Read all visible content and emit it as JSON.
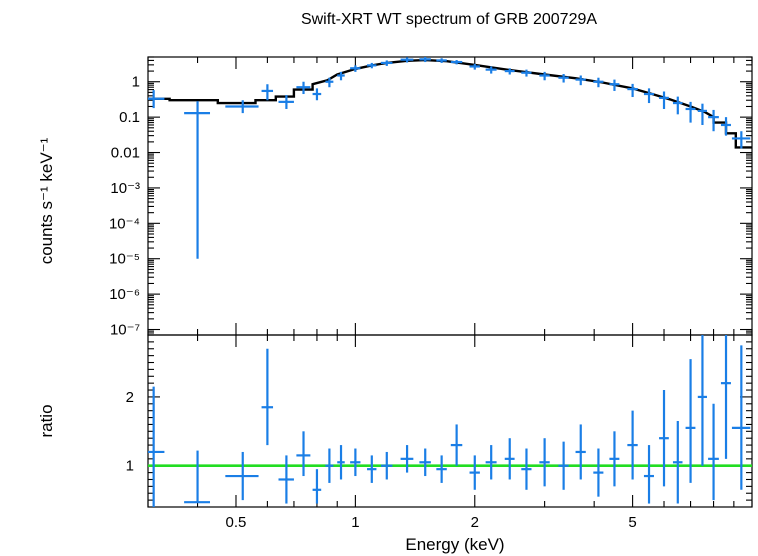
{
  "chart_data": [
    {
      "type": "scatter",
      "panel": "spectrum",
      "title": "Swift-XRT WT spectrum of GRB 200729A",
      "xlabel": "Energy (keV)",
      "ylabel": "counts s⁻¹ keV⁻¹",
      "xscale": "log",
      "yscale": "log",
      "xlim": [
        0.3,
        10
      ],
      "ylim": [
        7e-08,
        5
      ],
      "ytick_values": [
        1e-07,
        1e-06,
        1e-05,
        0.0001,
        0.001,
        0.01,
        0.1,
        1
      ],
      "ytick_labels": [
        "10⁻⁷",
        "10⁻⁶",
        "10⁻⁵",
        "10⁻⁴",
        "10⁻³",
        "0.01",
        "0.1",
        "1"
      ],
      "data": [
        {
          "x": 0.31,
          "xerr": 0.02,
          "y": 0.33,
          "yerr": [
            0.15,
            0.25
          ]
        },
        {
          "x": 0.4,
          "xerr": 0.03,
          "y": 0.13,
          "yerr": [
            0.12999,
            0.15
          ]
        },
        {
          "x": 0.52,
          "xerr": 0.05,
          "y": 0.2,
          "yerr": [
            0.07,
            0.1
          ]
        },
        {
          "x": 0.6,
          "xerr": 0.02,
          "y": 0.55,
          "yerr": [
            0.25,
            0.3
          ]
        },
        {
          "x": 0.67,
          "xerr": 0.03,
          "y": 0.27,
          "yerr": [
            0.1,
            0.15
          ]
        },
        {
          "x": 0.74,
          "xerr": 0.03,
          "y": 0.7,
          "yerr": [
            0.25,
            0.3
          ]
        },
        {
          "x": 0.8,
          "xerr": 0.02,
          "y": 0.45,
          "yerr": [
            0.15,
            0.2
          ]
        },
        {
          "x": 0.86,
          "xerr": 0.02,
          "y": 1.0,
          "yerr": [
            0.3,
            0.3
          ]
        },
        {
          "x": 0.92,
          "xerr": 0.02,
          "y": 1.5,
          "yerr": [
            0.4,
            0.4
          ]
        },
        {
          "x": 1.0,
          "xerr": 0.03,
          "y": 2.4,
          "yerr": [
            0.5,
            0.5
          ]
        },
        {
          "x": 1.1,
          "xerr": 0.03,
          "y": 2.9,
          "yerr": [
            0.5,
            0.5
          ]
        },
        {
          "x": 1.2,
          "xerr": 0.04,
          "y": 3.4,
          "yerr": [
            0.6,
            0.6
          ]
        },
        {
          "x": 1.35,
          "xerr": 0.05,
          "y": 4.2,
          "yerr": [
            0.7,
            0.7
          ]
        },
        {
          "x": 1.5,
          "xerr": 0.05,
          "y": 4.3,
          "yerr": [
            0.7,
            0.7
          ]
        },
        {
          "x": 1.65,
          "xerr": 0.05,
          "y": 4.0,
          "yerr": [
            0.6,
            0.6
          ]
        },
        {
          "x": 1.8,
          "xerr": 0.06,
          "y": 3.6,
          "yerr": [
            0.5,
            0.5
          ]
        },
        {
          "x": 2.0,
          "xerr": 0.06,
          "y": 2.7,
          "yerr": [
            0.5,
            0.5
          ]
        },
        {
          "x": 2.2,
          "xerr": 0.07,
          "y": 2.2,
          "yerr": [
            0.5,
            0.5
          ]
        },
        {
          "x": 2.45,
          "xerr": 0.07,
          "y": 2.0,
          "yerr": [
            0.4,
            0.4
          ]
        },
        {
          "x": 2.7,
          "xerr": 0.08,
          "y": 1.8,
          "yerr": [
            0.4,
            0.4
          ]
        },
        {
          "x": 3.0,
          "xerr": 0.09,
          "y": 1.5,
          "yerr": [
            0.4,
            0.4
          ]
        },
        {
          "x": 3.35,
          "xerr": 0.1,
          "y": 1.3,
          "yerr": [
            0.35,
            0.35
          ]
        },
        {
          "x": 3.7,
          "xerr": 0.11,
          "y": 1.15,
          "yerr": [
            0.35,
            0.35
          ]
        },
        {
          "x": 4.1,
          "xerr": 0.12,
          "y": 1.0,
          "yerr": [
            0.3,
            0.3
          ]
        },
        {
          "x": 4.5,
          "xerr": 0.13,
          "y": 0.85,
          "yerr": [
            0.3,
            0.3
          ]
        },
        {
          "x": 5.0,
          "xerr": 0.15,
          "y": 0.62,
          "yerr": [
            0.25,
            0.25
          ]
        },
        {
          "x": 5.5,
          "xerr": 0.16,
          "y": 0.45,
          "yerr": [
            0.2,
            0.2
          ]
        },
        {
          "x": 6.0,
          "xerr": 0.17,
          "y": 0.35,
          "yerr": [
            0.18,
            0.18
          ]
        },
        {
          "x": 6.5,
          "xerr": 0.18,
          "y": 0.25,
          "yerr": [
            0.13,
            0.13
          ]
        },
        {
          "x": 7.0,
          "xerr": 0.2,
          "y": 0.17,
          "yerr": [
            0.1,
            0.1
          ]
        },
        {
          "x": 7.5,
          "xerr": 0.2,
          "y": 0.15,
          "yerr": [
            0.09,
            0.09
          ]
        },
        {
          "x": 8.0,
          "xerr": 0.25,
          "y": 0.1,
          "yerr": [
            0.06,
            0.06
          ]
        },
        {
          "x": 8.6,
          "xerr": 0.25,
          "y": 0.06,
          "yerr": [
            0.03,
            0.04
          ]
        },
        {
          "x": 9.4,
          "xerr": 0.5,
          "y": 0.025,
          "yerr": [
            0.012,
            0.015
          ]
        }
      ],
      "model": {
        "x": [
          0.3,
          0.34,
          0.34,
          0.45,
          0.45,
          0.56,
          0.56,
          0.63,
          0.63,
          0.7,
          0.7,
          0.78,
          0.78,
          0.85,
          0.9,
          1.0,
          1.1,
          1.2,
          1.35,
          1.5,
          1.7,
          2.0,
          2.4,
          3.0,
          3.6,
          4.2,
          5.0,
          5.6,
          6.2,
          7.0,
          7.6,
          8.0,
          8.0,
          8.6,
          8.6,
          9.1,
          9.1,
          10.0
        ],
        "y": [
          0.33,
          0.33,
          0.3,
          0.3,
          0.25,
          0.25,
          0.3,
          0.3,
          0.38,
          0.38,
          0.6,
          0.6,
          0.85,
          1.1,
          1.6,
          2.3,
          2.9,
          3.4,
          3.9,
          4.1,
          3.8,
          3.0,
          2.2,
          1.6,
          1.25,
          0.95,
          0.65,
          0.45,
          0.32,
          0.2,
          0.14,
          0.1,
          0.07,
          0.07,
          0.035,
          0.035,
          0.014,
          0.014
        ]
      },
      "colors": {
        "data": "#1a7ee6",
        "model": "#000000"
      }
    },
    {
      "type": "scatter",
      "panel": "ratio",
      "xlabel": "Energy (keV)",
      "ylabel": "ratio",
      "xscale": "log",
      "xlim": [
        0.3,
        10
      ],
      "ylim": [
        0.4,
        2.9
      ],
      "ytick_values": [
        1,
        2
      ],
      "ytick_labels": [
        "1",
        "2"
      ],
      "xtick_values": [
        0.5,
        1,
        2,
        5
      ],
      "xtick_labels": [
        "0.5",
        "1",
        "2",
        "5"
      ],
      "reference_line": 1,
      "data": [
        {
          "x": 0.31,
          "xerr": 0.02,
          "y": 1.2,
          "yerr": [
            0.8,
            0.95
          ]
        },
        {
          "x": 0.4,
          "xerr": 0.03,
          "y": 0.47,
          "yerr": [
            0.0,
            0.75
          ]
        },
        {
          "x": 0.52,
          "xerr": 0.05,
          "y": 0.85,
          "yerr": [
            0.35,
            0.35
          ]
        },
        {
          "x": 0.6,
          "xerr": 0.02,
          "y": 1.85,
          "yerr": [
            0.55,
            0.85
          ]
        },
        {
          "x": 0.67,
          "xerr": 0.03,
          "y": 0.8,
          "yerr": [
            0.35,
            0.35
          ]
        },
        {
          "x": 0.74,
          "xerr": 0.03,
          "y": 1.15,
          "yerr": [
            0.3,
            0.35
          ]
        },
        {
          "x": 0.8,
          "xerr": 0.02,
          "y": 0.65,
          "yerr": [
            0.2,
            0.3
          ]
        },
        {
          "x": 0.86,
          "xerr": 0.02,
          "y": 1.0,
          "yerr": [
            0.25,
            0.25
          ]
        },
        {
          "x": 0.92,
          "xerr": 0.02,
          "y": 1.05,
          "yerr": [
            0.25,
            0.25
          ]
        },
        {
          "x": 1.0,
          "xerr": 0.03,
          "y": 1.05,
          "yerr": [
            0.2,
            0.2
          ]
        },
        {
          "x": 1.1,
          "xerr": 0.03,
          "y": 0.95,
          "yerr": [
            0.2,
            0.2
          ]
        },
        {
          "x": 1.2,
          "xerr": 0.04,
          "y": 1.0,
          "yerr": [
            0.2,
            0.2
          ]
        },
        {
          "x": 1.35,
          "xerr": 0.05,
          "y": 1.1,
          "yerr": [
            0.2,
            0.2
          ]
        },
        {
          "x": 1.5,
          "xerr": 0.05,
          "y": 1.05,
          "yerr": [
            0.2,
            0.2
          ]
        },
        {
          "x": 1.65,
          "xerr": 0.05,
          "y": 0.95,
          "yerr": [
            0.2,
            0.2
          ]
        },
        {
          "x": 1.8,
          "xerr": 0.06,
          "y": 1.3,
          "yerr": [
            0.3,
            0.3
          ]
        },
        {
          "x": 2.0,
          "xerr": 0.06,
          "y": 0.9,
          "yerr": [
            0.25,
            0.25
          ]
        },
        {
          "x": 2.2,
          "xerr": 0.07,
          "y": 1.05,
          "yerr": [
            0.25,
            0.25
          ]
        },
        {
          "x": 2.45,
          "xerr": 0.07,
          "y": 1.1,
          "yerr": [
            0.3,
            0.3
          ]
        },
        {
          "x": 2.7,
          "xerr": 0.08,
          "y": 0.95,
          "yerr": [
            0.3,
            0.3
          ]
        },
        {
          "x": 3.0,
          "xerr": 0.09,
          "y": 1.05,
          "yerr": [
            0.35,
            0.35
          ]
        },
        {
          "x": 3.35,
          "xerr": 0.1,
          "y": 1.0,
          "yerr": [
            0.35,
            0.35
          ]
        },
        {
          "x": 3.7,
          "xerr": 0.11,
          "y": 1.2,
          "yerr": [
            0.4,
            0.4
          ]
        },
        {
          "x": 4.1,
          "xerr": 0.12,
          "y": 0.9,
          "yerr": [
            0.35,
            0.35
          ]
        },
        {
          "x": 4.5,
          "xerr": 0.13,
          "y": 1.1,
          "yerr": [
            0.4,
            0.4
          ]
        },
        {
          "x": 5.0,
          "xerr": 0.15,
          "y": 1.3,
          "yerr": [
            0.5,
            0.5
          ]
        },
        {
          "x": 5.5,
          "xerr": 0.16,
          "y": 0.85,
          "yerr": [
            0.4,
            0.45
          ]
        },
        {
          "x": 6.0,
          "xerr": 0.17,
          "y": 1.4,
          "yerr": [
            0.7,
            0.7
          ]
        },
        {
          "x": 6.5,
          "xerr": 0.18,
          "y": 1.05,
          "yerr": [
            0.6,
            0.6
          ]
        },
        {
          "x": 7.0,
          "xerr": 0.2,
          "y": 1.55,
          "yerr": [
            0.8,
            1.0
          ]
        },
        {
          "x": 7.5,
          "xerr": 0.2,
          "y": 2.0,
          "yerr": [
            1.0,
            1.0
          ]
        },
        {
          "x": 8.0,
          "xerr": 0.25,
          "y": 1.1,
          "yerr": [
            0.6,
            0.8
          ]
        },
        {
          "x": 8.6,
          "xerr": 0.25,
          "y": 2.2,
          "yerr": [
            1.1,
            0.9
          ]
        },
        {
          "x": 9.4,
          "xerr": 0.5,
          "y": 1.55,
          "yerr": [
            0.9,
            1.2
          ]
        }
      ],
      "colors": {
        "data": "#1a7ee6",
        "reference_line": "#22dd22"
      }
    }
  ]
}
